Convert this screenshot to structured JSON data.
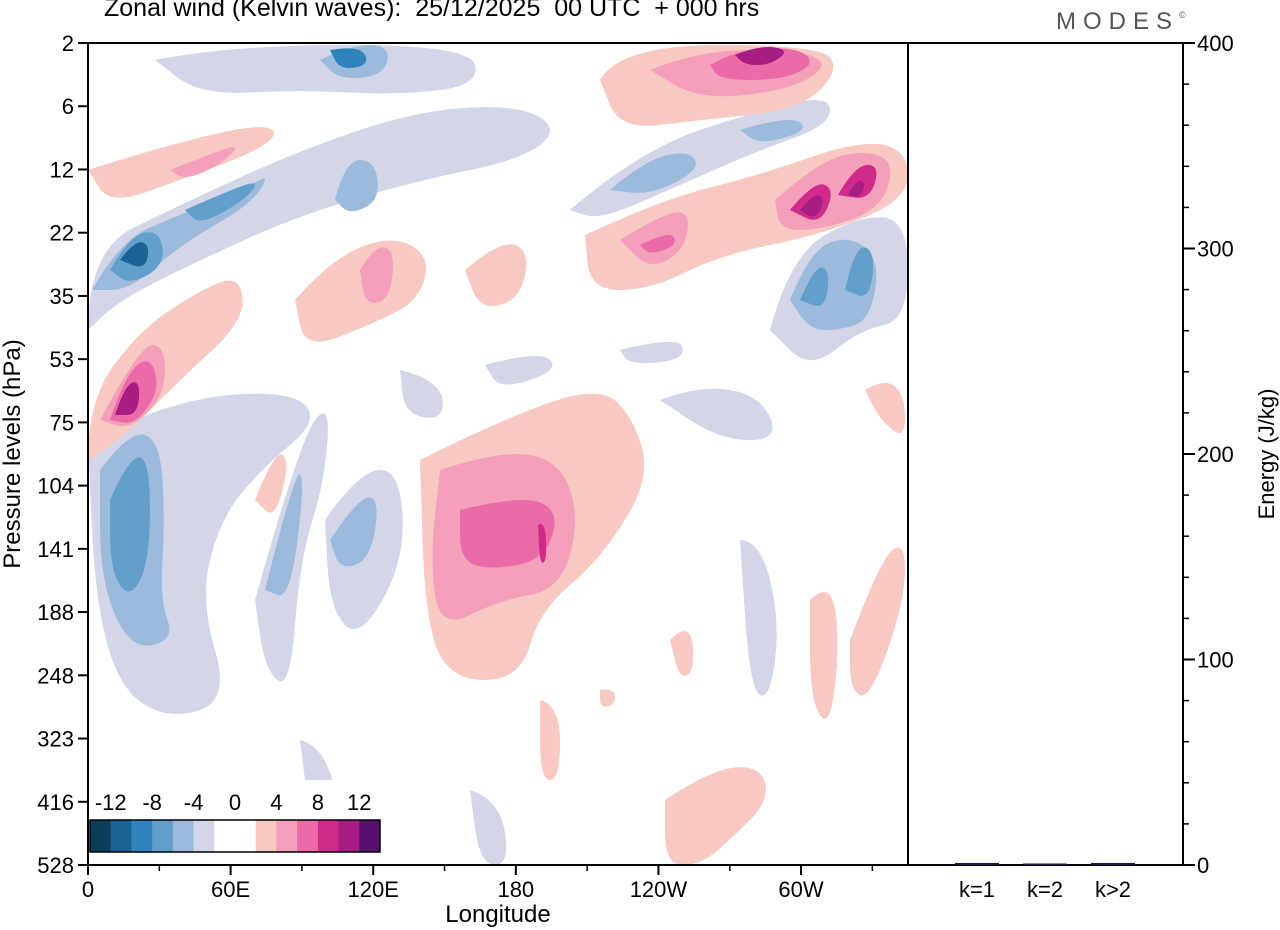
{
  "title": "Zonal wind (Kelvin waves):  25/12/2025  00 UTC  + 000 hrs",
  "brand": "MODES",
  "brand_mark": "©",
  "colors": {
    "neg": [
      "#0e3d5c",
      "#1a6394",
      "#2f85bb",
      "#62a0cb",
      "#9cbbdc",
      "#d3d5e8"
    ],
    "zero": "#ffffff",
    "pos": [
      "#f8c9c3",
      "#f4a0bb",
      "#eb6aa8",
      "#d02a8a",
      "#a61d83",
      "#5a0f6e"
    ]
  },
  "chart_data": [
    {
      "type": "heatmap",
      "title": "Zonal wind (Kelvin waves)",
      "xlabel": "Longitude",
      "ylabel": "Pressure levels (hPa)",
      "x_ticks": [
        "0",
        "60E",
        "120E",
        "180",
        "120W",
        "60W"
      ],
      "x_tick_values": [
        0,
        60,
        120,
        180,
        240,
        300
      ],
      "xlim": [
        0,
        345
      ],
      "y_ticks": [
        "2",
        "6",
        "12",
        "22",
        "35",
        "53",
        "75",
        "104",
        "141",
        "188",
        "248",
        "323",
        "416",
        "528"
      ],
      "colorbar": {
        "labels": [
          "-12",
          "-8",
          "-4",
          "0",
          "4",
          "8",
          "12"
        ],
        "levels": [
          -12,
          -10,
          -8,
          -6,
          -4,
          -2,
          2,
          4,
          6,
          8,
          10,
          12
        ]
      },
      "features": [
        {
          "lon": 15,
          "level": 4,
          "value": -11,
          "name": "negative core near 22 hPa"
        },
        {
          "lon": 15,
          "level": 6.5,
          "value": 11,
          "name": "positive core near 75 hPa"
        },
        {
          "lon": 15,
          "level": 8.6,
          "value": -7,
          "name": "negative region near 141 hPa"
        },
        {
          "lon": 190,
          "level": 8.8,
          "value": 9,
          "name": "positive region near 141 hPa"
        },
        {
          "lon": 285,
          "level": 0.3,
          "value": 11,
          "name": "positive core near 2 hPa"
        },
        {
          "lon": 305,
          "level": 2.9,
          "value": 11,
          "name": "positive cores near 12-22 hPa"
        },
        {
          "lon": 315,
          "level": 4.5,
          "value": -7,
          "name": "negative region near 35 hPa"
        }
      ]
    },
    {
      "type": "bar",
      "ylabel": "Energy (J/kg)",
      "categories": [
        "k=1",
        "k=2",
        "k>2"
      ],
      "values": [
        1,
        0.5,
        1
      ],
      "ylim": [
        0,
        400
      ],
      "y_ticks": [
        "0",
        "100",
        "200",
        "300",
        "400"
      ],
      "y_tick_values": [
        0,
        100,
        200,
        300,
        400
      ]
    }
  ]
}
